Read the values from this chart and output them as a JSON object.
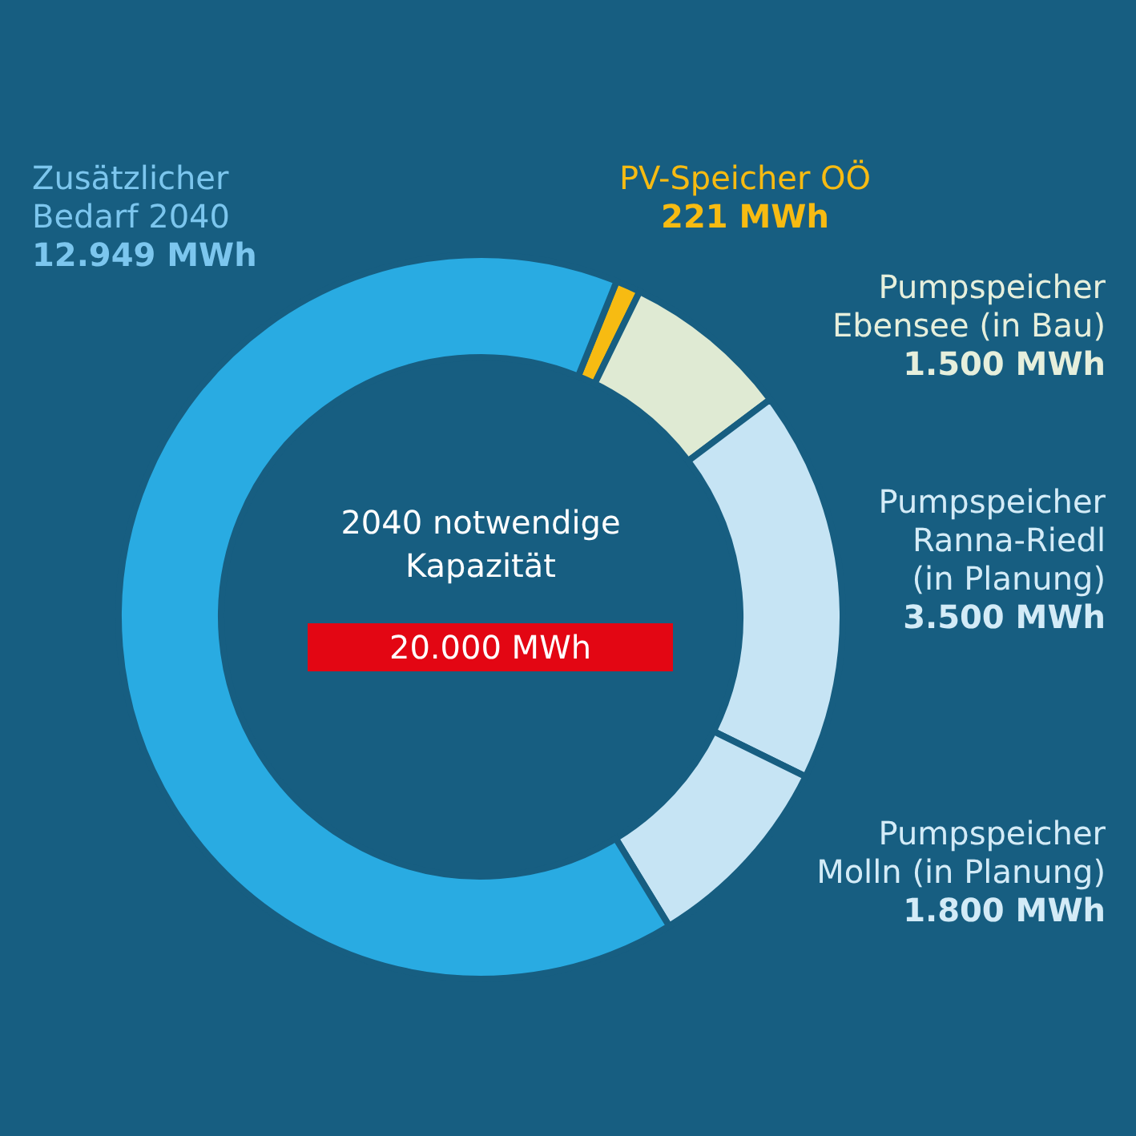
{
  "chart_data": {
    "type": "donut",
    "categories": [
      "PV-Speicher OÖ",
      "Pumpspeicher\nEbensee (in Bau)",
      "Pumpspeicher\nRanna-Riedl\n(in Planung)",
      "Pumpspeicher\nMolln (in Planung)",
      "Zusätzlicher\nBedarf 2040"
    ],
    "values": [
      221,
      1500,
      3500,
      1800,
      12949
    ],
    "value_labels": [
      "221 MWh",
      "1.500 MWh",
      "3.500 MWh",
      "1.800 MWh",
      "12.949 MWh"
    ],
    "colors": [
      "#f7bb12",
      "#dfead3",
      "#c6e4f4",
      "#c6e4f4",
      "#29abe2"
    ],
    "annotations": [
      "2040 notwendige\nKapazität",
      "20.000 MWh"
    ],
    "legend": false
  }
}
